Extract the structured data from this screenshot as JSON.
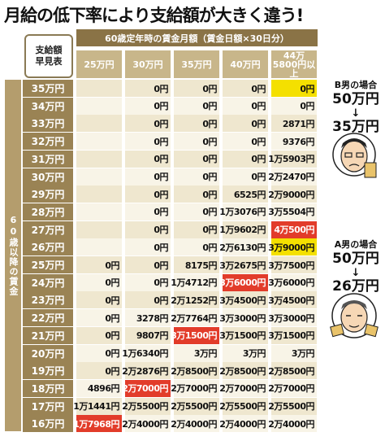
{
  "title": "月給の低下率により支給額が大きく違う!",
  "key_box": [
    "支給額",
    "早見表"
  ],
  "header_top": "60歳定年時の賃金月額（賃金日額×30日分）",
  "columns": [
    "25万円",
    "30万円",
    "35万円",
    "40万円",
    "44万5800円以上"
  ],
  "side_band": "60歳以降の賃金",
  "rows": [
    {
      "label": "35万円",
      "cells": [
        "",
        "0円",
        "0円",
        "0円",
        "0円"
      ]
    },
    {
      "label": "34万円",
      "cells": [
        "",
        "0円",
        "0円",
        "0円",
        "0円"
      ]
    },
    {
      "label": "33万円",
      "cells": [
        "",
        "0円",
        "0円",
        "0円",
        "2871円"
      ]
    },
    {
      "label": "32万円",
      "cells": [
        "",
        "0円",
        "0円",
        "0円",
        "9376円"
      ]
    },
    {
      "label": "31万円",
      "cells": [
        "",
        "0円",
        "0円",
        "0円",
        "1万5903円"
      ]
    },
    {
      "label": "30万円",
      "cells": [
        "",
        "0円",
        "0円",
        "0円",
        "2万2470円"
      ]
    },
    {
      "label": "29万円",
      "cells": [
        "",
        "0円",
        "0円",
        "6525円",
        "2万9000円"
      ]
    },
    {
      "label": "28万円",
      "cells": [
        "",
        "0円",
        "0円",
        "1万3076円",
        "3万5504円"
      ]
    },
    {
      "label": "27万円",
      "cells": [
        "",
        "0円",
        "0円",
        "1万9602円",
        "4万500円"
      ]
    },
    {
      "label": "26万円",
      "cells": [
        "",
        "0円",
        "0円",
        "2万6130円",
        "3万9000円"
      ]
    },
    {
      "label": "25万円",
      "cells": [
        "0円",
        "0円",
        "8175円",
        "3万2675円",
        "3万7500円"
      ]
    },
    {
      "label": "24万円",
      "cells": [
        "0円",
        "0円",
        "1万4712円",
        "3万6000円",
        "3万6000円"
      ]
    },
    {
      "label": "23万円",
      "cells": [
        "0円",
        "0円",
        "2万1252円",
        "3万4500円",
        "3万4500円"
      ]
    },
    {
      "label": "22万円",
      "cells": [
        "0円",
        "3278円",
        "2万7764円",
        "3万3000円",
        "3万3000円"
      ]
    },
    {
      "label": "21万円",
      "cells": [
        "0円",
        "9807円",
        "3万1500円",
        "3万1500円",
        "3万1500円"
      ]
    },
    {
      "label": "20万円",
      "cells": [
        "0円",
        "1万6340円",
        "3万円",
        "3万円",
        "3万円"
      ]
    },
    {
      "label": "19万円",
      "cells": [
        "0円",
        "2万2876円",
        "2万8500円",
        "2万8500円",
        "2万8500円"
      ]
    },
    {
      "label": "18万円",
      "cells": [
        "4896円",
        "2万7000円",
        "2万7000円",
        "2万7000円",
        "2万7000円"
      ]
    },
    {
      "label": "17万円",
      "cells": [
        "1万1441円",
        "2万5500円",
        "2万5500円",
        "2万5500円",
        "2万5500円"
      ]
    },
    {
      "label": "16万円",
      "cells": [
        "1万7968円",
        "2万4000円",
        "2万4000円",
        "2万4000円",
        "2万4000円"
      ]
    }
  ],
  "highlights": {
    "yellow": [
      [
        0,
        4
      ],
      [
        9,
        4
      ]
    ],
    "red": [
      [
        8,
        4
      ],
      [
        11,
        3
      ],
      [
        14,
        2
      ],
      [
        17,
        1
      ],
      [
        19,
        0
      ]
    ]
  },
  "note_b": {
    "label": "B男の場合",
    "from": "50万円",
    "arrow": "↓",
    "to": "35万円"
  },
  "note_a": {
    "label": "A男の場合",
    "from": "50万円",
    "arrow": "↓",
    "to": "26万円"
  },
  "colors": {
    "header_dark": "#8a7346",
    "header_light": "#c8b68a",
    "row_label": "#9a8354",
    "yellow": "#f4e000",
    "red": "#e23c2a"
  }
}
